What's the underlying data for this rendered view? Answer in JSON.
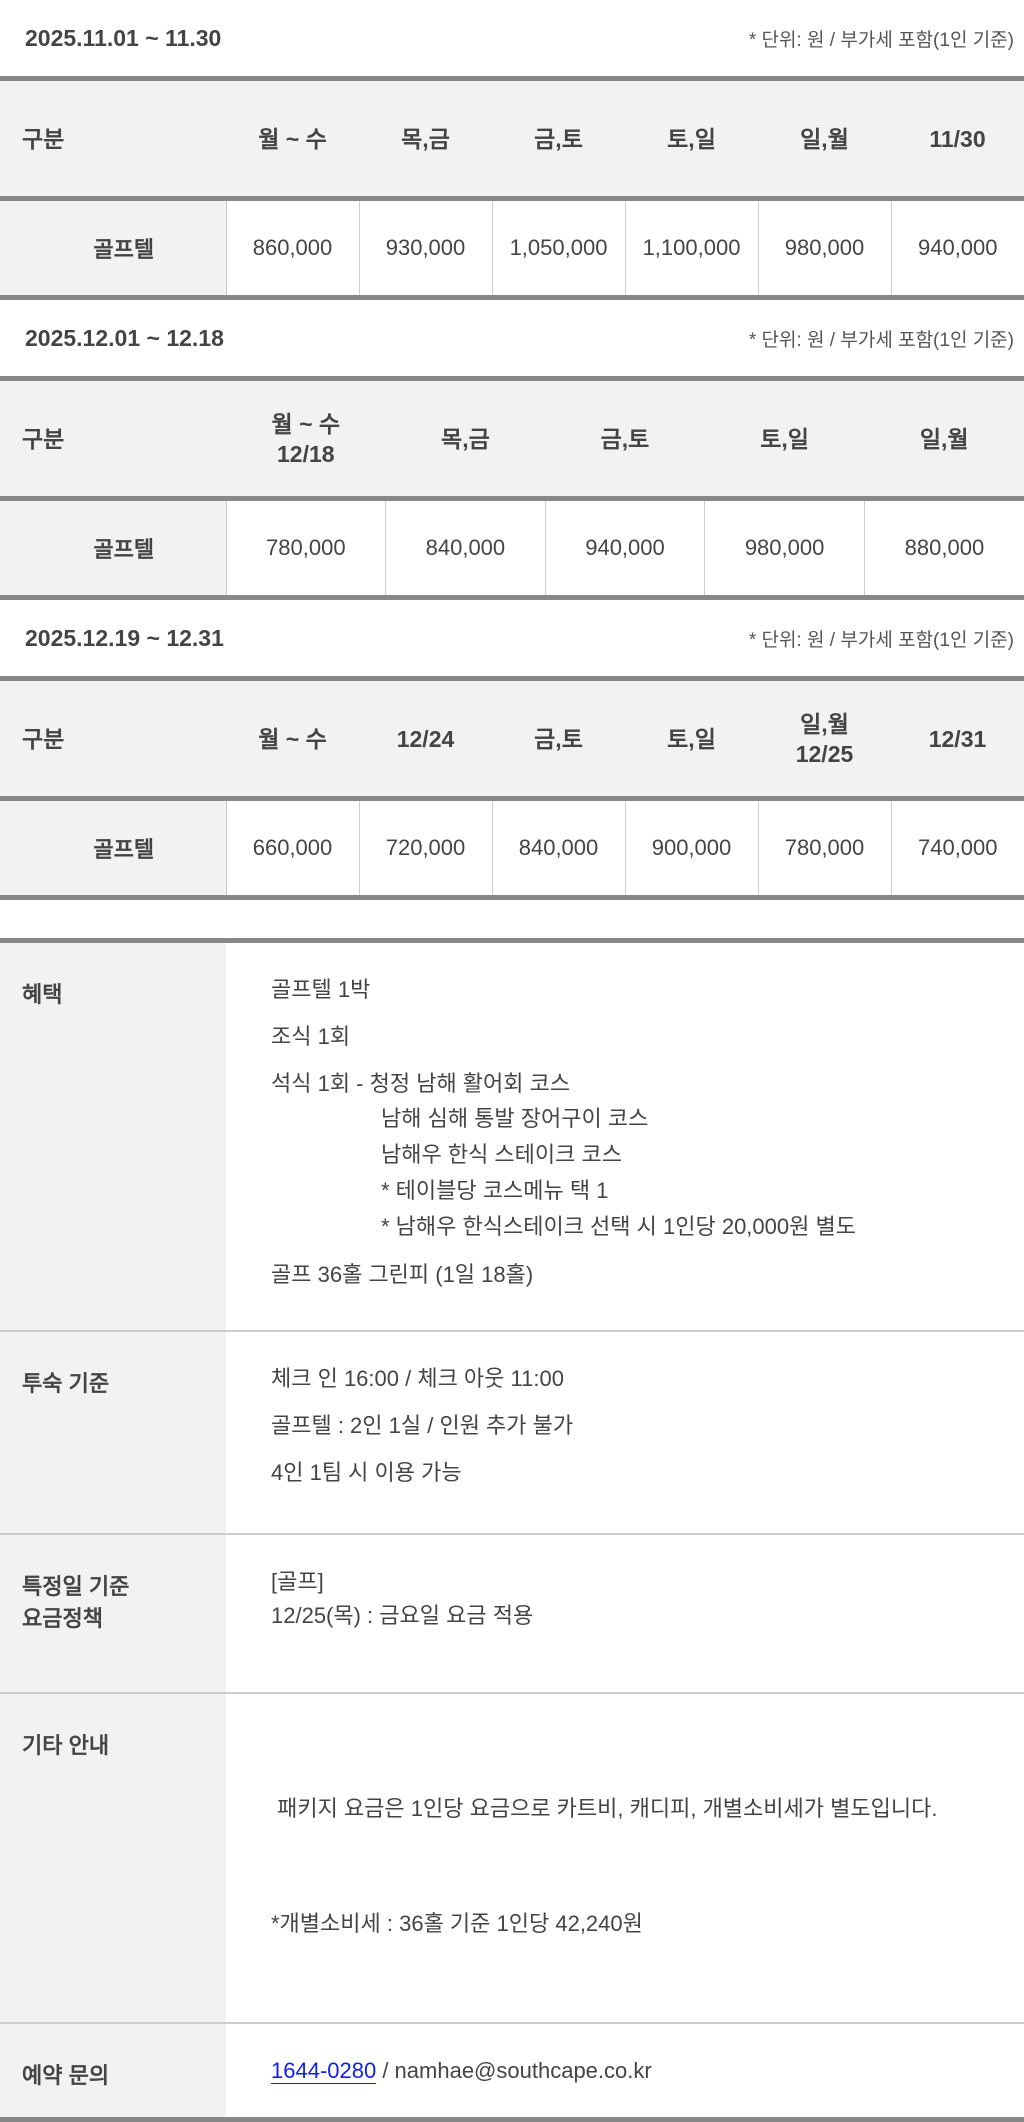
{
  "unit_note": "* 단위: 원 / 부가세 포함(1인 기준)",
  "tables": [
    {
      "period": "2025.11.01 ~ 11.30",
      "label_header": "구분",
      "headers": [
        "월 ~ 수",
        "목,금",
        "금,토",
        "토,일",
        "일,월",
        "11/30"
      ],
      "row_label": "골프텔",
      "values": [
        "860,000",
        "930,000",
        "1,050,000",
        "1,100,000",
        "980,000",
        "940,000"
      ]
    },
    {
      "period": "2025.12.01 ~ 12.18",
      "label_header": "구분",
      "headers": [
        "월 ~ 수\n12/18",
        "목,금",
        "금,토",
        "토,일",
        "일,월"
      ],
      "row_label": "골프텔",
      "values": [
        "780,000",
        "840,000",
        "940,000",
        "980,000",
        "880,000"
      ]
    },
    {
      "period": "2025.12.19 ~ 12.31",
      "label_header": "구분",
      "headers": [
        "월 ~ 수",
        "12/24",
        "금,토",
        "토,일",
        "일,월\n12/25",
        "12/31"
      ],
      "row_label": "골프텔",
      "values": [
        "660,000",
        "720,000",
        "840,000",
        "900,000",
        "780,000",
        "740,000"
      ]
    }
  ],
  "info": {
    "benefits": {
      "label": "혜택",
      "lines": [
        "골프텔 1박",
        "조식 1회",
        "석식 1회 - 청정 남해 활어회 코스"
      ],
      "sub": [
        "남해 심해 통발 장어구이 코스",
        "남해우 한식 스테이크 코스",
        "* 테이블당 코스메뉴 택 1",
        "* 남해우 한식스테이크 선택 시 1인당 20,000원 별도"
      ],
      "last": "골프 36홀 그린피 (1일 18홀)"
    },
    "stay": {
      "label": "투숙 기준",
      "lines": [
        "체크 인 16:00 / 체크 아웃 11:00",
        "골프텔 : 2인 1실 / 인원 추가 불가",
        "4인 1팀 시 이용 가능"
      ]
    },
    "special": {
      "label1": "특정일 기준",
      "label2": "요금정책",
      "lines": [
        "[골프]",
        "12/25(목) : 금요일 요금 적용"
      ]
    },
    "etc": {
      "label": "기타 안내",
      "lines": [
        " 패키지 요금은 1인당 요금으로 카트비, 캐디피, 개별소비세가 별도입니다.",
        "*개별소비세 : 36홀 기준 1인당 42,240원"
      ]
    },
    "contact": {
      "label": "예약 문의",
      "phone": "1644-0280",
      "rest": " / namhae@southcape.co.kr"
    }
  }
}
